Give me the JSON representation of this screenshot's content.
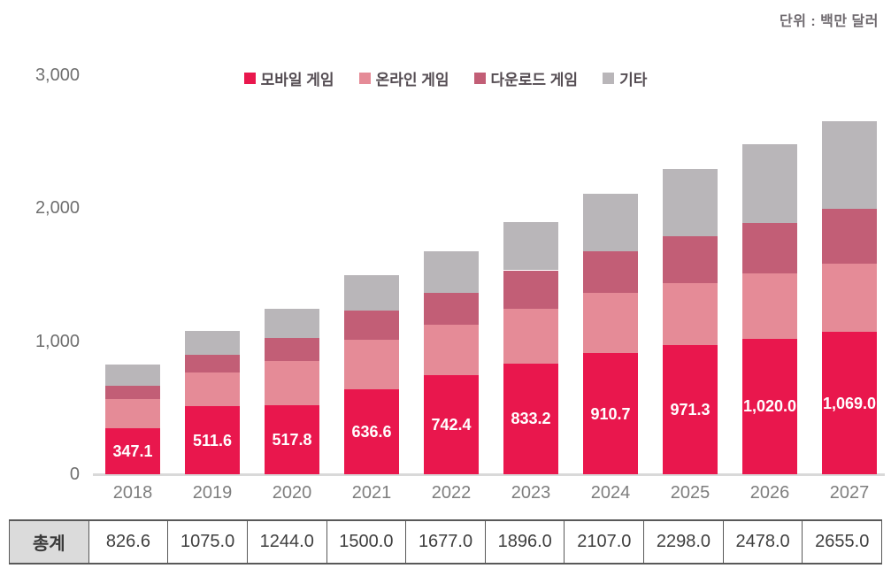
{
  "unit_label": "단위 : 백만 달러",
  "colors": {
    "mobile": "#E9174D",
    "online": "#E58B97",
    "download": "#C25E76",
    "others": "#B9B6B9",
    "baseline": "#D9D9D9",
    "table_border": "#595959",
    "table_header_bg": "#DBDBDB"
  },
  "chart_data": {
    "type": "bar",
    "stacked": true,
    "title": "",
    "xlabel": "",
    "ylabel": "",
    "ylim": [
      0,
      3000
    ],
    "grid": false,
    "legend_position": "top-center",
    "yticks": [
      {
        "label": "0",
        "value": 0
      },
      {
        "label": "1,000",
        "value": 1000
      },
      {
        "label": "2,000",
        "value": 2000
      },
      {
        "label": "3,000",
        "value": 3000
      }
    ],
    "categories": [
      "2018",
      "2019",
      "2020",
      "2021",
      "2022",
      "2023",
      "2024",
      "2025",
      "2026",
      "2027"
    ],
    "series": [
      {
        "name": "모바일 게임",
        "key": "mobile",
        "color": "#E9174D",
        "values": [
          347.1,
          511.6,
          517.8,
          636.6,
          742.4,
          833.2,
          910.7,
          971.3,
          1020.0,
          1069.0
        ],
        "labels": [
          "347.1",
          "511.6",
          "517.8",
          "636.6",
          "742.4",
          "833.2",
          "910.7",
          "971.3",
          "1,020.0",
          "1,069.0"
        ]
      },
      {
        "name": "온라인 게임",
        "key": "online",
        "color": "#E58B97",
        "estimated": true,
        "values": [
          215.0,
          256.0,
          335.0,
          373.0,
          384.0,
          412.0,
          450.0,
          468.0,
          488.0,
          516.0
        ]
      },
      {
        "name": "다운로드 게임",
        "key": "download",
        "color": "#C25E76",
        "estimated": true,
        "values": [
          106.0,
          128.0,
          172.0,
          223.0,
          238.0,
          288.0,
          313.0,
          349.0,
          381.0,
          409.0
        ]
      },
      {
        "name": "기타",
        "key": "others",
        "color": "#B9B6B9",
        "estimated": true,
        "values": [
          158.5,
          179.4,
          219.2,
          267.4,
          312.6,
          362.8,
          433.3,
          509.7,
          589.0,
          661.0
        ]
      }
    ],
    "totals": [
      826.6,
      1075.0,
      1244.0,
      1500.0,
      1677.0,
      1896.0,
      2107.0,
      2298.0,
      2478.0,
      2655.0
    ]
  },
  "table": {
    "header": "총계",
    "values": [
      "826.6",
      "1075.0",
      "1244.0",
      "1500.0",
      "1677.0",
      "1896.0",
      "2107.0",
      "2298.0",
      "2478.0",
      "2655.0"
    ]
  }
}
